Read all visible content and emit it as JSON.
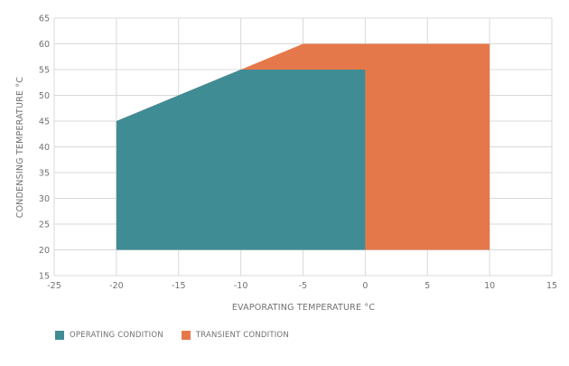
{
  "chart_data": {
    "type": "area",
    "xlabel": "EVAPORATING TEMPERATURE °C",
    "ylabel": "CONDENSING TEMPERATURE °C",
    "xlim": [
      -25,
      15
    ],
    "ylim": [
      15,
      65
    ],
    "x_ticks": [
      -25,
      -20,
      -15,
      -10,
      -5,
      0,
      5,
      10,
      15
    ],
    "y_ticks": [
      15,
      20,
      25,
      30,
      35,
      40,
      45,
      50,
      55,
      60,
      65
    ],
    "grid": true,
    "legend_position": "bottom-left",
    "series": [
      {
        "name": "TRANSIENT CONDITION",
        "color": "#e5784a",
        "polygon": [
          [
            -20,
            20
          ],
          [
            -20,
            45
          ],
          [
            -5,
            60
          ],
          [
            10,
            60
          ],
          [
            10,
            20
          ]
        ]
      },
      {
        "name": "OPERATING CONDITION",
        "color": "#3f8c95",
        "polygon": [
          [
            -20,
            20
          ],
          [
            -20,
            45
          ],
          [
            -10,
            55
          ],
          [
            0,
            55
          ],
          [
            0,
            20
          ]
        ]
      }
    ]
  },
  "legend": {
    "items": [
      {
        "label": "OPERATING CONDITION",
        "color": "#3f8c95"
      },
      {
        "label": "TRANSIENT CONDITION",
        "color": "#e5784a"
      }
    ]
  }
}
